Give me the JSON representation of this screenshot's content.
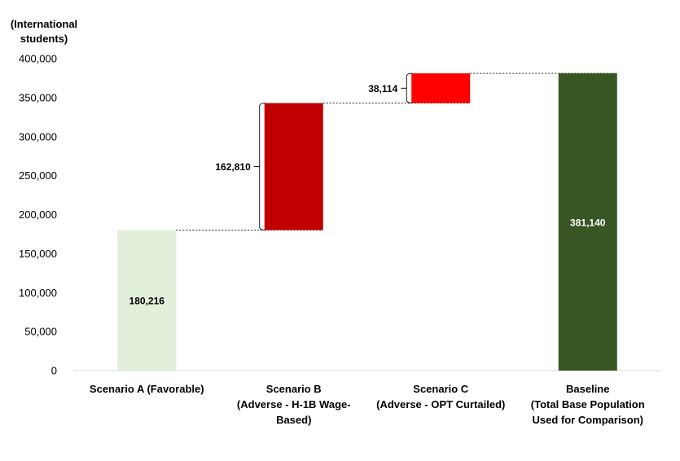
{
  "chart_data": {
    "type": "bar",
    "waterfall": true,
    "ylabel": "(International students)",
    "ylabel_lines": [
      "(International",
      "students)"
    ],
    "ylim": [
      0,
      400000
    ],
    "yticks": [
      0,
      50000,
      100000,
      150000,
      200000,
      250000,
      300000,
      350000,
      400000
    ],
    "ytick_labels": [
      "0",
      "50,000",
      "100,000",
      "150,000",
      "200,000",
      "250,000",
      "300,000",
      "350,000",
      "400,000"
    ],
    "grid": false,
    "legend": "none",
    "categories": [
      "Scenario A (Favorable)",
      "Scenario B (Adverse - H-1B Wage-Based)",
      "Scenario C (Adverse - OPT Curtailed)",
      "Baseline (Total Base Population Used for Comparison)"
    ],
    "category_lines": [
      [
        "Scenario A (Favorable)"
      ],
      [
        "Scenario B",
        "(Adverse - H-1B Wage-",
        "Based)"
      ],
      [
        "Scenario C",
        "(Adverse - OPT Curtailed)"
      ],
      [
        "Baseline",
        "(Total Base Population",
        "Used for Comparison)"
      ]
    ],
    "bars": [
      {
        "category": "Scenario A (Favorable)",
        "base": 0,
        "value": 180216,
        "label": "180,216",
        "label_position": "inside",
        "color": "#e2efda"
      },
      {
        "category": "Scenario B (Adverse - H-1B Wage-Based)",
        "base": 180216,
        "value": 162810,
        "label": "162,810",
        "label_position": "bracket-left",
        "color": "#c00000"
      },
      {
        "category": "Scenario C (Adverse - OPT Curtailed)",
        "base": 343026,
        "value": 38114,
        "label": "38,114",
        "label_position": "bracket-left",
        "color": "#ff0000"
      },
      {
        "category": "Baseline (Total Base Population Used for Comparison)",
        "base": 0,
        "value": 381140,
        "label": "381,140",
        "label_position": "inside",
        "color": "#375623",
        "label_color": "#ffffff"
      }
    ]
  }
}
